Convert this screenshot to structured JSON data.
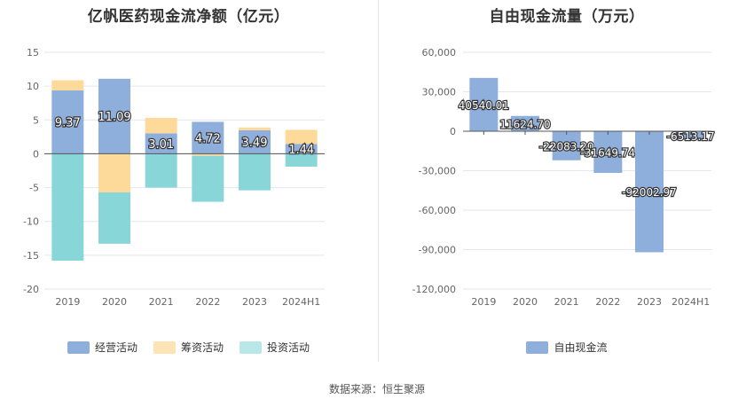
{
  "source": "数据来源：恒生聚源",
  "chart_data": [
    {
      "type": "bar",
      "stacked": true,
      "title": "亿帆医药现金流净额（亿元）",
      "categories": [
        "2019",
        "2020",
        "2021",
        "2022",
        "2023",
        "2024H1"
      ],
      "ylim": [
        -20,
        15
      ],
      "yticks": [
        15,
        10,
        5,
        0,
        -5,
        -10,
        -15,
        -20
      ],
      "grid": true,
      "legend_position": "bottom",
      "series": [
        {
          "name": "经营活动",
          "color": "#8eaedc",
          "values": [
            9.37,
            11.09,
            3.01,
            4.72,
            3.49,
            1.44
          ],
          "labels": [
            "9.37",
            "11.09",
            "3.01",
            "4.72",
            "3.49",
            "1.44"
          ]
        },
        {
          "name": "筹资活动",
          "color": "#fdd99a",
          "values": [
            1.5,
            -5.7,
            2.3,
            -0.3,
            0.4,
            2.1
          ]
        },
        {
          "name": "投资活动",
          "color": "#88d6d8",
          "values": [
            -15.8,
            -7.6,
            -5.0,
            -6.8,
            -5.4,
            -1.9
          ]
        }
      ]
    },
    {
      "type": "bar",
      "title": "自由现金流量（万元）",
      "categories": [
        "2019",
        "2020",
        "2021",
        "2022",
        "2023",
        "2024H1"
      ],
      "ylim": [
        -120000,
        60000
      ],
      "yticks": [
        60000,
        30000,
        0,
        -30000,
        -60000,
        -90000,
        -120000
      ],
      "ytick_labels": [
        "60,000",
        "30,000",
        "0",
        "-30,000",
        "-60,000",
        "-90,000",
        "-120,000"
      ],
      "grid": true,
      "legend_position": "bottom",
      "series": [
        {
          "name": "自由现金流",
          "color": "#8eaedc",
          "values": [
            40540.01,
            11624.7,
            -22083.2,
            -31649.74,
            -92002.97,
            -6513.17
          ],
          "labels": [
            "40540.01",
            "11624.70",
            "-22083.20",
            "-31649.74",
            "-92002.97",
            "-6513.17"
          ]
        }
      ]
    }
  ]
}
